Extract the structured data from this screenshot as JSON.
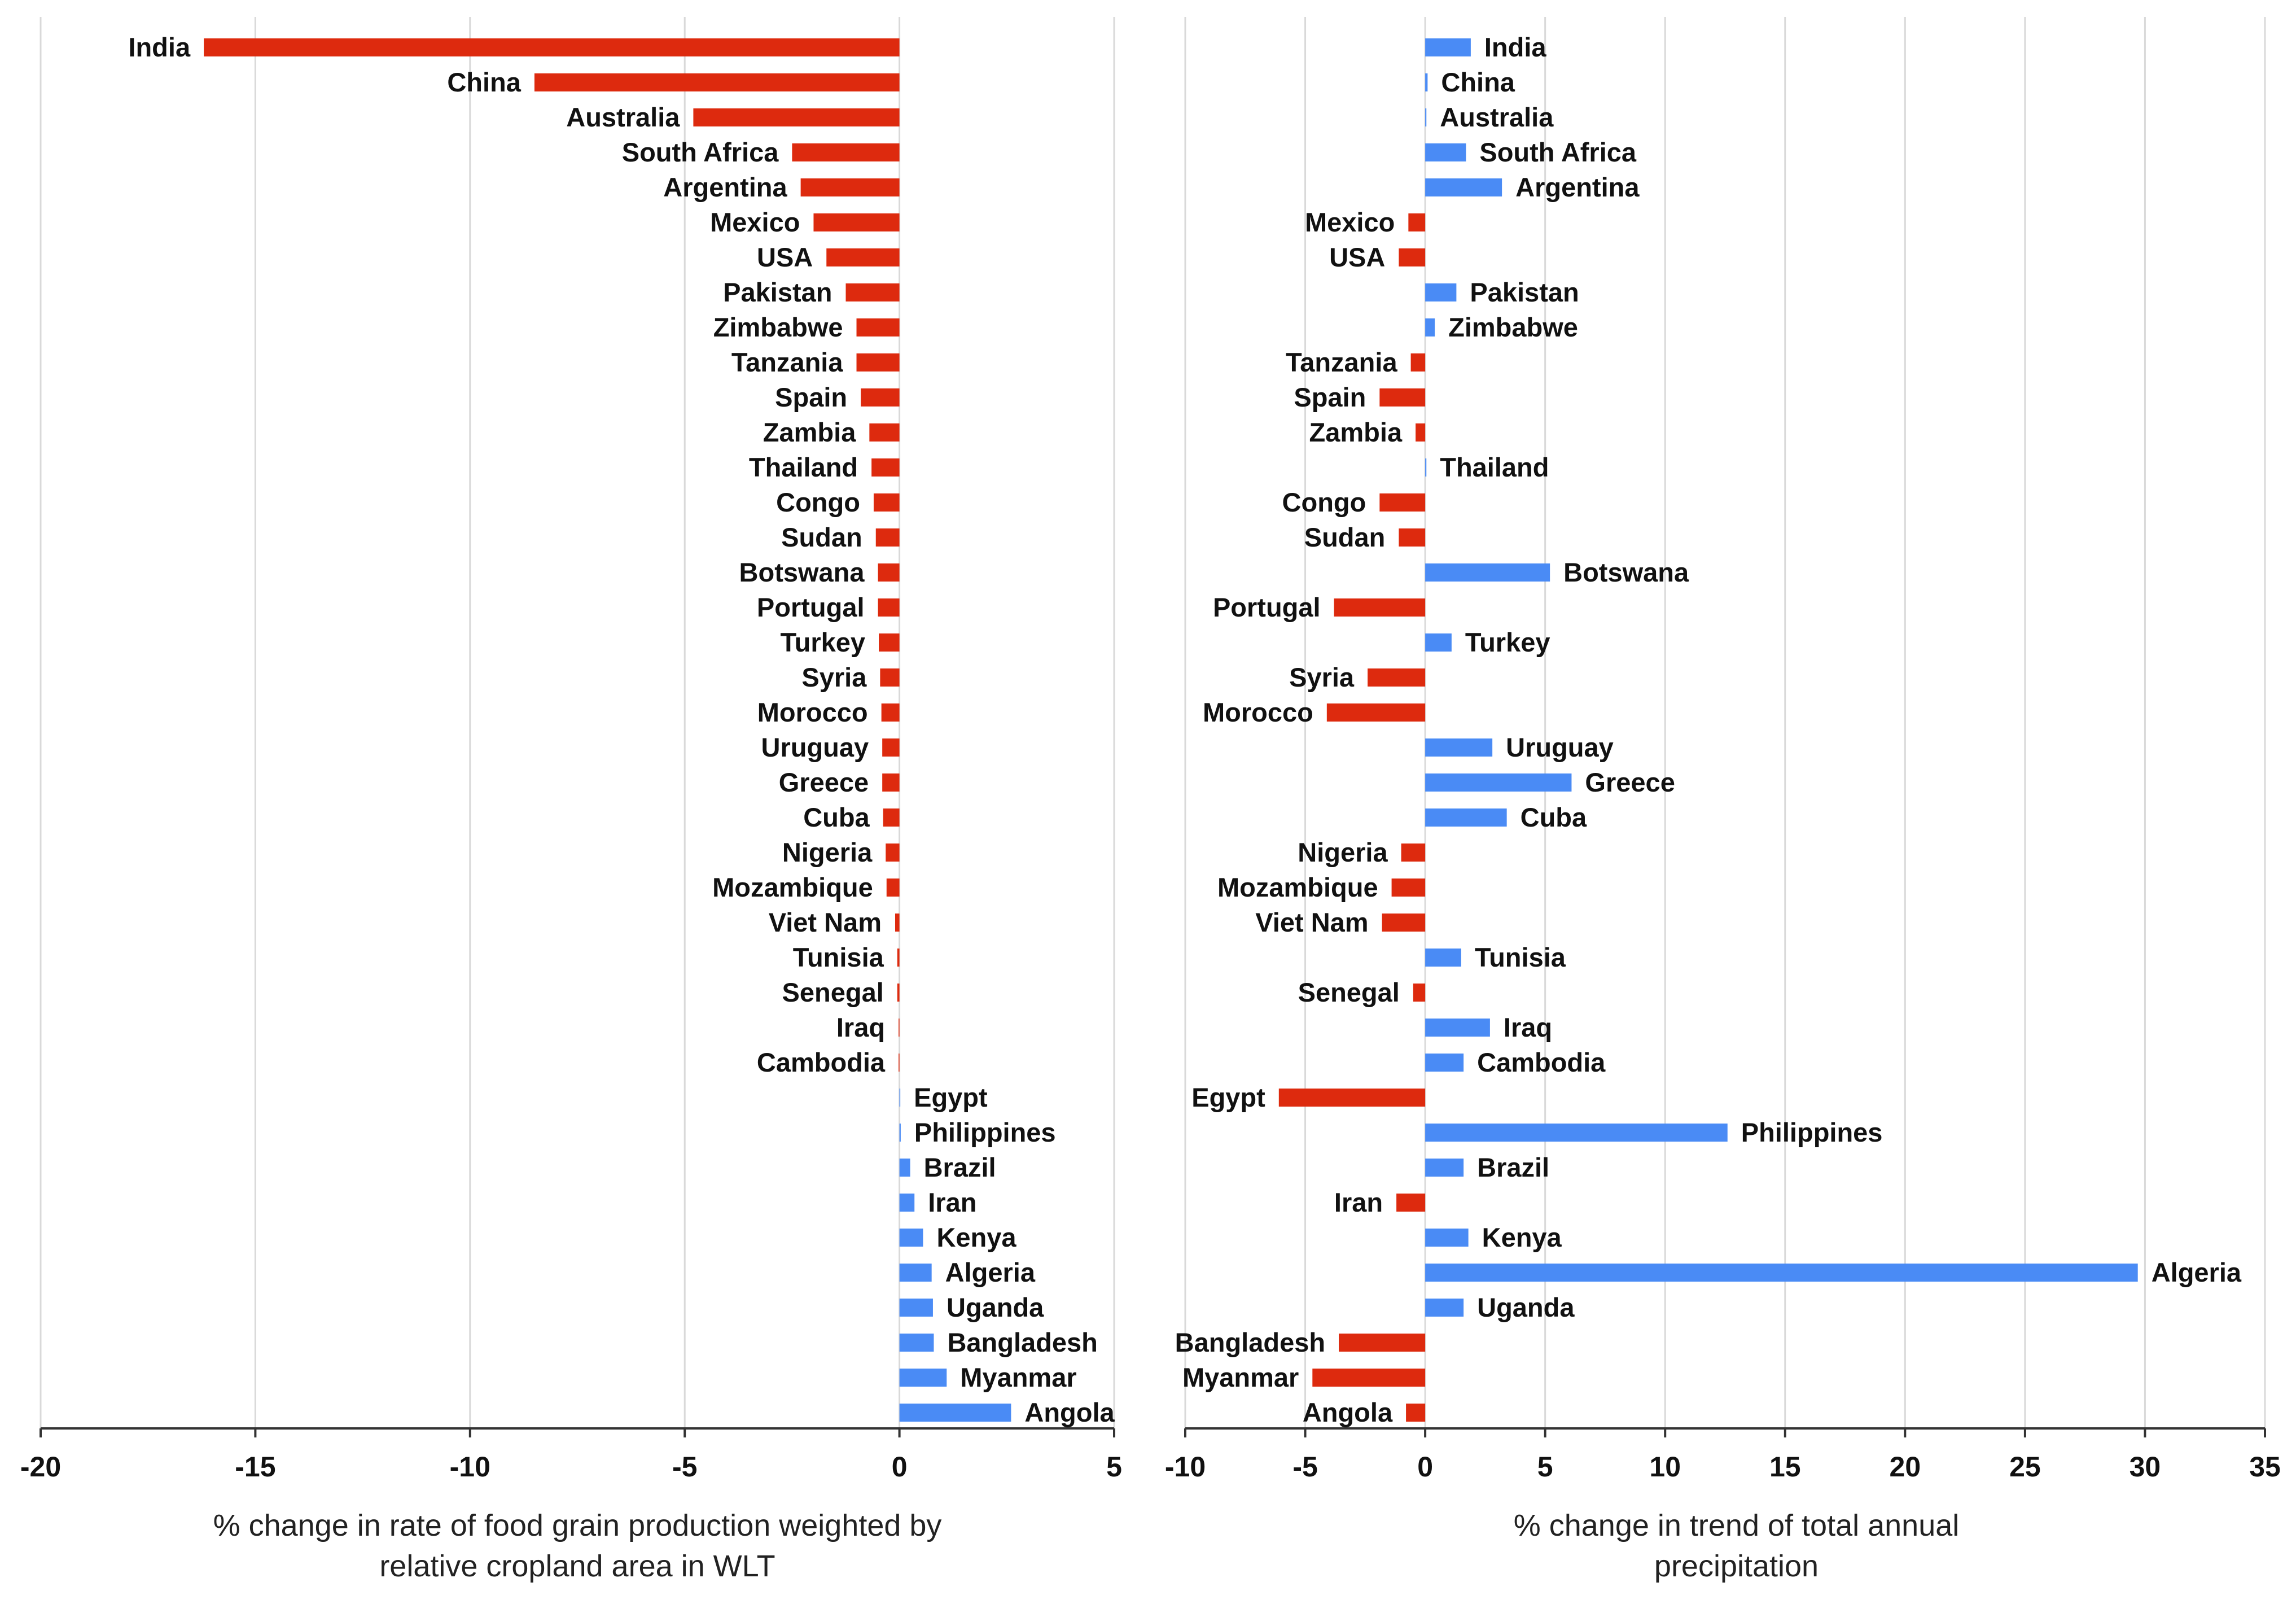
{
  "colors": {
    "negative": "#dd2a0e",
    "positive": "#4a8bf5",
    "grid": "#d9d9d9",
    "axis": "#333333"
  },
  "chart_data": [
    {
      "type": "bar",
      "orientation": "horizontal",
      "xlabel": [
        "% change in rate of food grain production weighted by",
        "relative cropland area in WLT"
      ],
      "xlim": [
        -20,
        5
      ],
      "xticks": [
        -20,
        -15,
        -10,
        -5,
        0,
        5
      ],
      "grid": true,
      "categories": [
        "India",
        "China",
        "Australia",
        "South Africa",
        "Argentina",
        "Mexico",
        "USA",
        "Pakistan",
        "Zimbabwe",
        "Tanzania",
        "Spain",
        "Zambia",
        "Thailand",
        "Congo",
        "Sudan",
        "Botswana",
        "Portugal",
        "Turkey",
        "Syria",
        "Morocco",
        "Uruguay",
        "Greece",
        "Cuba",
        "Nigeria",
        "Mozambique",
        "Viet Nam",
        "Tunisia",
        "Senegal",
        "Iraq",
        "Cambodia",
        "Egypt",
        "Philippines",
        "Brazil",
        "Iran",
        "Kenya",
        "Algeria",
        "Uganda",
        "Bangladesh",
        "Myanmar",
        "Angola"
      ],
      "values": [
        -16.2,
        -8.5,
        -4.8,
        -2.5,
        -2.3,
        -2.0,
        -1.7,
        -1.25,
        -1.0,
        -1.0,
        -0.9,
        -0.7,
        -0.65,
        -0.6,
        -0.55,
        -0.5,
        -0.5,
        -0.48,
        -0.45,
        -0.42,
        -0.4,
        -0.4,
        -0.38,
        -0.32,
        -0.3,
        -0.1,
        -0.05,
        -0.05,
        -0.02,
        -0.02,
        0.02,
        0.03,
        0.25,
        0.35,
        0.55,
        0.75,
        0.78,
        0.8,
        1.1,
        2.6
      ]
    },
    {
      "type": "bar",
      "orientation": "horizontal",
      "xlabel": [
        "% change in trend of total annual",
        "precipitation"
      ],
      "xlim": [
        -10,
        35
      ],
      "xticks": [
        -10,
        -5,
        0,
        5,
        10,
        15,
        20,
        25,
        30,
        35
      ],
      "grid": true,
      "categories": [
        "India",
        "China",
        "Australia",
        "South Africa",
        "Argentina",
        "Mexico",
        "USA",
        "Pakistan",
        "Zimbabwe",
        "Tanzania",
        "Spain",
        "Zambia",
        "Thailand",
        "Congo",
        "Sudan",
        "Botswana",
        "Portugal",
        "Turkey",
        "Syria",
        "Morocco",
        "Uruguay",
        "Greece",
        "Cuba",
        "Nigeria",
        "Mozambique",
        "Viet Nam",
        "Tunisia",
        "Senegal",
        "Iraq",
        "Cambodia",
        "Egypt",
        "Philippines",
        "Brazil",
        "Iran",
        "Kenya",
        "Algeria",
        "Uganda",
        "Bangladesh",
        "Myanmar",
        "Angola"
      ],
      "values": [
        1.9,
        0.1,
        0.05,
        1.7,
        3.2,
        -0.7,
        -1.1,
        1.3,
        0.4,
        -0.6,
        -1.9,
        -0.4,
        0.05,
        -1.9,
        -1.1,
        5.2,
        -3.8,
        1.1,
        -2.4,
        -4.1,
        2.8,
        6.1,
        3.4,
        -1.0,
        -1.4,
        -1.8,
        1.5,
        -0.5,
        2.7,
        1.6,
        -6.1,
        12.6,
        1.6,
        -1.2,
        1.8,
        29.7,
        1.6,
        -3.6,
        -4.7,
        -0.8
      ]
    }
  ]
}
